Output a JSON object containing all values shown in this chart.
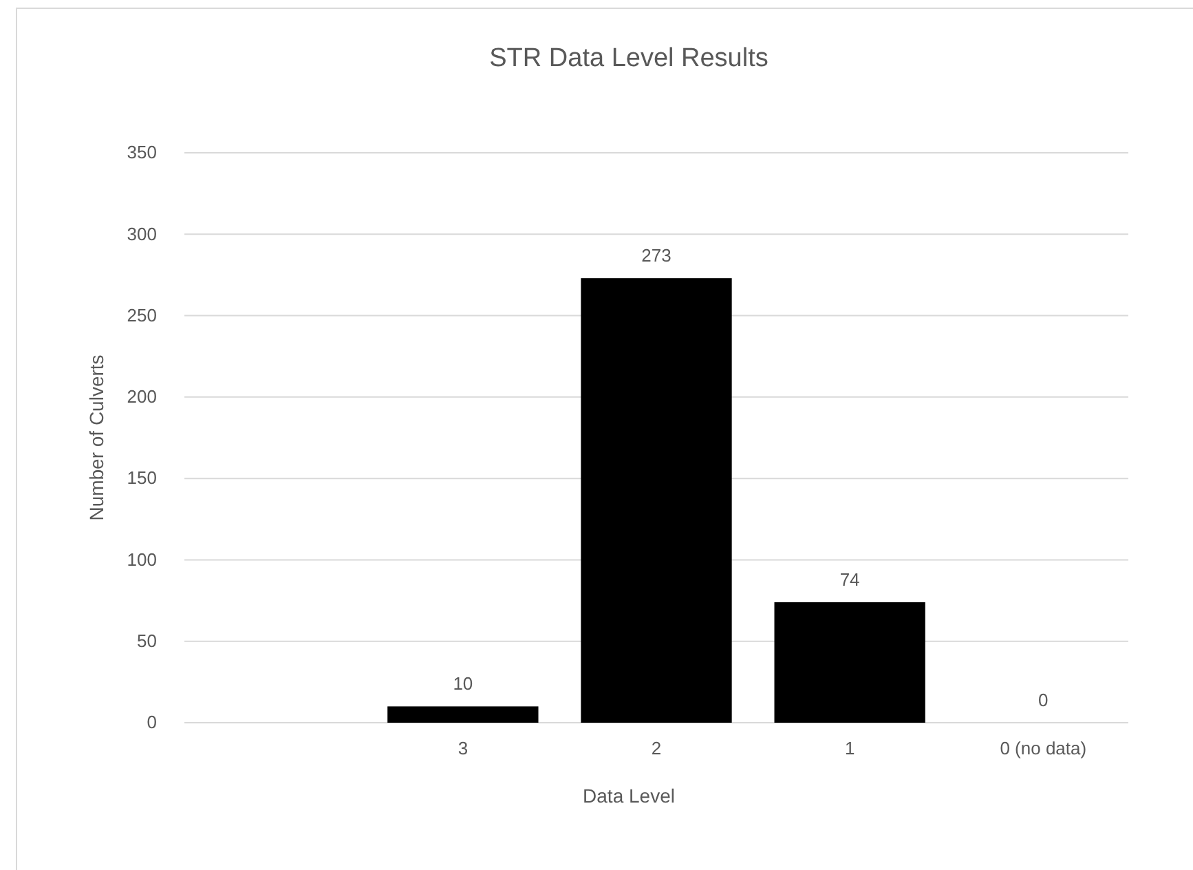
{
  "chart_data": {
    "type": "bar",
    "title": "STR Data Level Results",
    "xlabel": "Data Level",
    "ylabel": "Number of Culverts",
    "categories": [
      null,
      "3",
      "2",
      "1",
      "0 (no data)"
    ],
    "values": [
      null,
      10,
      273,
      74,
      0
    ],
    "color": "#000000",
    "ylim": [
      0,
      350
    ],
    "yticks": [
      0,
      50,
      100,
      150,
      200,
      250,
      300,
      350
    ],
    "grid": "y",
    "data_labels": true
  }
}
